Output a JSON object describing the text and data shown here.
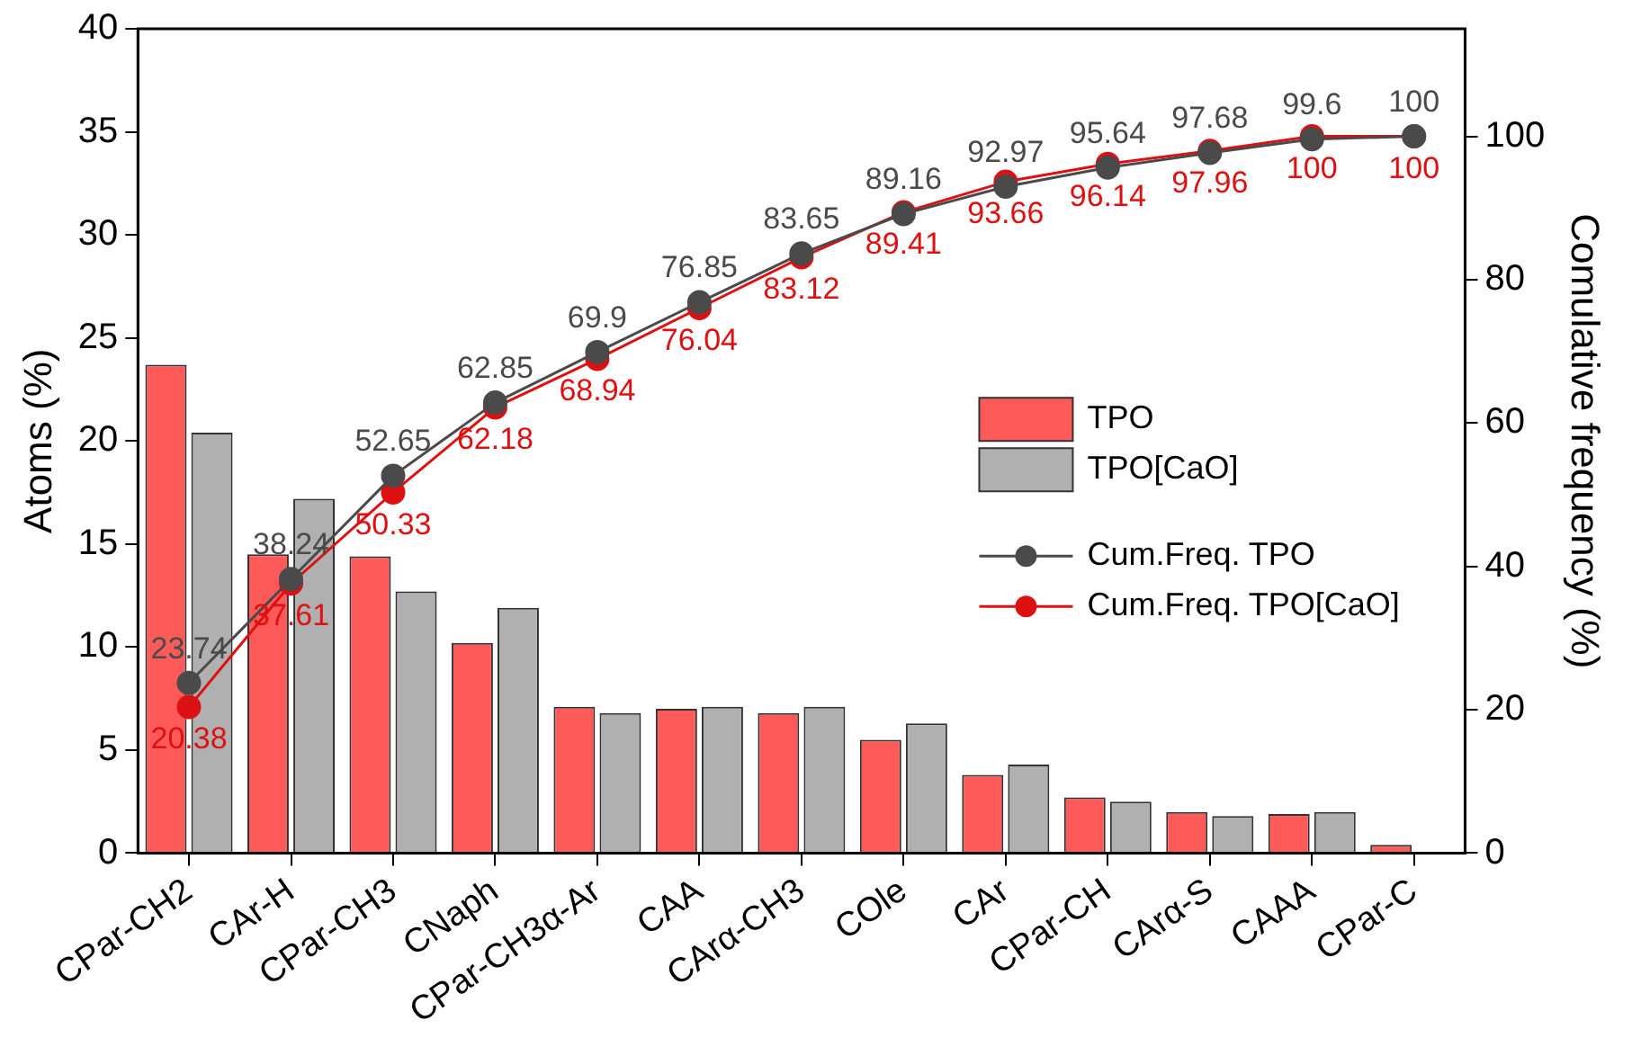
{
  "chart_data": {
    "type": "bar",
    "ylabel": "Atoms (%)",
    "y2label": "Comulative frequency (%)",
    "categories": [
      "CPar-CH2",
      "CAr-H",
      "CPar-CH3",
      "CNaph",
      "CPar-CH3α-Ar",
      "CAA",
      "CArα-CH3",
      "COle",
      "CAr",
      "CPar-CH",
      "CArα-S",
      "CAAA",
      "CPar-C"
    ],
    "ylim": [
      0,
      40
    ],
    "yticks": [
      0,
      5,
      10,
      15,
      20,
      25,
      30,
      35,
      40
    ],
    "y2lim": [
      0,
      115
    ],
    "y2ticks": [
      0,
      20,
      40,
      60,
      80,
      100
    ],
    "grid": false,
    "legend": "right",
    "marker": "circle",
    "series": [
      {
        "name": "TPO",
        "color": "#ff5a5a",
        "values": [
          23.7,
          14.5,
          14.4,
          10.2,
          7.1,
          7.0,
          6.8,
          5.5,
          3.8,
          2.7,
          2.0,
          1.9,
          0.4
        ]
      },
      {
        "name": "TPO[CaO]",
        "color": "#b0b0b0",
        "values": [
          20.4,
          17.2,
          12.7,
          11.9,
          6.8,
          7.1,
          7.1,
          6.3,
          4.3,
          2.5,
          1.8,
          2.0,
          0
        ]
      },
      {
        "name": "Cum.Freq. TPO",
        "type": "line",
        "axis": "y2",
        "color": "#4a4a4a",
        "values": [
          23.74,
          38.24,
          52.65,
          62.85,
          69.9,
          76.85,
          83.65,
          89.16,
          92.97,
          95.64,
          97.68,
          99.6,
          100
        ],
        "value_labels": [
          "23.74",
          "38.24",
          "52.65",
          "62.85",
          "69.9",
          "76.85",
          "83.65",
          "89.16",
          "92.97",
          "95.64",
          "97.68",
          "99.6",
          "100"
        ]
      },
      {
        "name": "Cum.Freq. TPO[CaO]",
        "type": "line",
        "axis": "y2",
        "color": "#dd1111",
        "values": [
          20.38,
          37.61,
          50.33,
          62.18,
          68.94,
          76.04,
          83.12,
          89.41,
          93.66,
          96.14,
          97.96,
          100,
          100
        ],
        "value_labels": [
          "20.38",
          "37.61",
          "50.33",
          "62.18",
          "68.94",
          "76.04",
          "83.12",
          "89.41",
          "93.66",
          "96.14",
          "97.96",
          "100",
          "100"
        ]
      }
    ]
  }
}
